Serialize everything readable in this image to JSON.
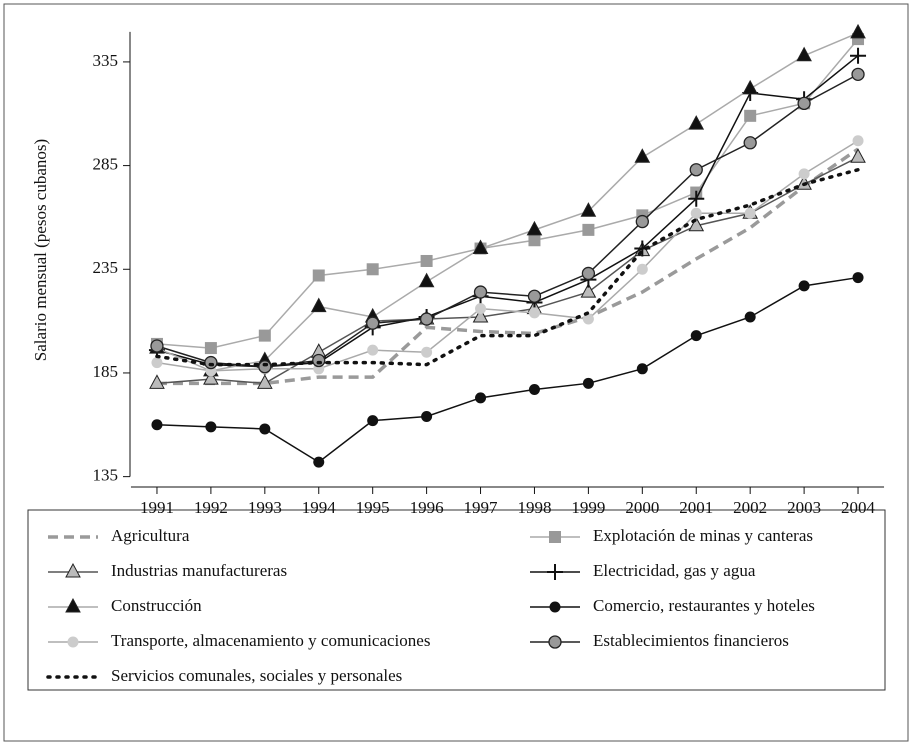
{
  "chart_data": {
    "type": "line",
    "y_label": "Salario mensual (pesos cubanos)",
    "x": [
      1991,
      1992,
      1993,
      1994,
      1995,
      1996,
      1997,
      1998,
      1999,
      2000,
      2001,
      2002,
      2003,
      2004
    ],
    "xlim": [
      1990.5,
      2004.5
    ],
    "xticks": [
      1991,
      1992,
      1993,
      1994,
      1995,
      1996,
      1997,
      1998,
      1999,
      2000,
      2001,
      2002,
      2003,
      2004
    ],
    "ylim": [
      130,
      361
    ],
    "yticks": [
      135,
      185,
      235,
      285,
      335
    ],
    "series": [
      {
        "name": "Agricultura",
        "color": "#9a9a9a",
        "style": "dashed",
        "marker": "none",
        "marker_color": "#9a9a9a",
        "values": [
          180,
          180,
          180,
          183,
          183,
          207,
          205,
          204,
          212,
          224,
          240,
          255,
          275,
          293
        ]
      },
      {
        "name": "Explotación de minas y canteras",
        "color": "#aaaaaa",
        "style": "solid",
        "marker": "square",
        "marker_color": "#999999",
        "values": [
          199,
          197,
          203,
          232,
          235,
          239,
          245,
          249,
          254,
          261,
          272,
          309,
          315,
          346
        ]
      },
      {
        "name": "Industrias manufactureras",
        "color": "#555555",
        "style": "solid",
        "marker": "triangle",
        "marker_color": "#bbbbbb",
        "values": [
          180,
          182,
          180,
          195,
          210,
          211,
          212,
          216,
          224,
          244,
          256,
          262,
          276,
          289
        ]
      },
      {
        "name": "Electricidad, gas y agua",
        "color": "#111111",
        "style": "solid",
        "marker": "plus",
        "marker_color": "#111111",
        "values": [
          196,
          189,
          188,
          190,
          207,
          212,
          222,
          219,
          230,
          245,
          269,
          320,
          317,
          338
        ]
      },
      {
        "name": "Construcción",
        "color": "#aaaaaa",
        "style": "solid",
        "marker": "filled-triangle",
        "marker_color": "#111111",
        "values": [
          197,
          186,
          191,
          217,
          212,
          229,
          245,
          254,
          263,
          289,
          305,
          322,
          338,
          349
        ]
      },
      {
        "name": "Comercio, restaurantes y hoteles",
        "color": "#111111",
        "style": "solid",
        "marker": "circle",
        "marker_color": "#111111",
        "values": [
          160,
          159,
          158,
          142,
          162,
          164,
          173,
          177,
          180,
          187,
          203,
          212,
          227,
          231
        ]
      },
      {
        "name": "Transporte, almacenamiento y comunicaciones",
        "color": "#aaaaaa",
        "style": "solid",
        "marker": "circle",
        "marker_color": "#cccccc",
        "values": [
          190,
          186,
          187,
          187,
          196,
          195,
          216,
          214,
          211,
          235,
          262,
          262,
          281,
          297
        ]
      },
      {
        "name": "Establecimientos financieros",
        "color": "#222222",
        "style": "solid",
        "marker": "outlined-circle",
        "marker_color": "#999999",
        "values": [
          198,
          190,
          188,
          191,
          209,
          211,
          224,
          222,
          233,
          258,
          283,
          296,
          315,
          329
        ]
      },
      {
        "name": "Servicios comunales, sociales y personales",
        "color": "#111111",
        "style": "dotted",
        "marker": "none",
        "marker_color": "#111111",
        "values": [
          193,
          189,
          189,
          190,
          190,
          189,
          203,
          203,
          214,
          244,
          259,
          266,
          276,
          283
        ]
      }
    ]
  }
}
